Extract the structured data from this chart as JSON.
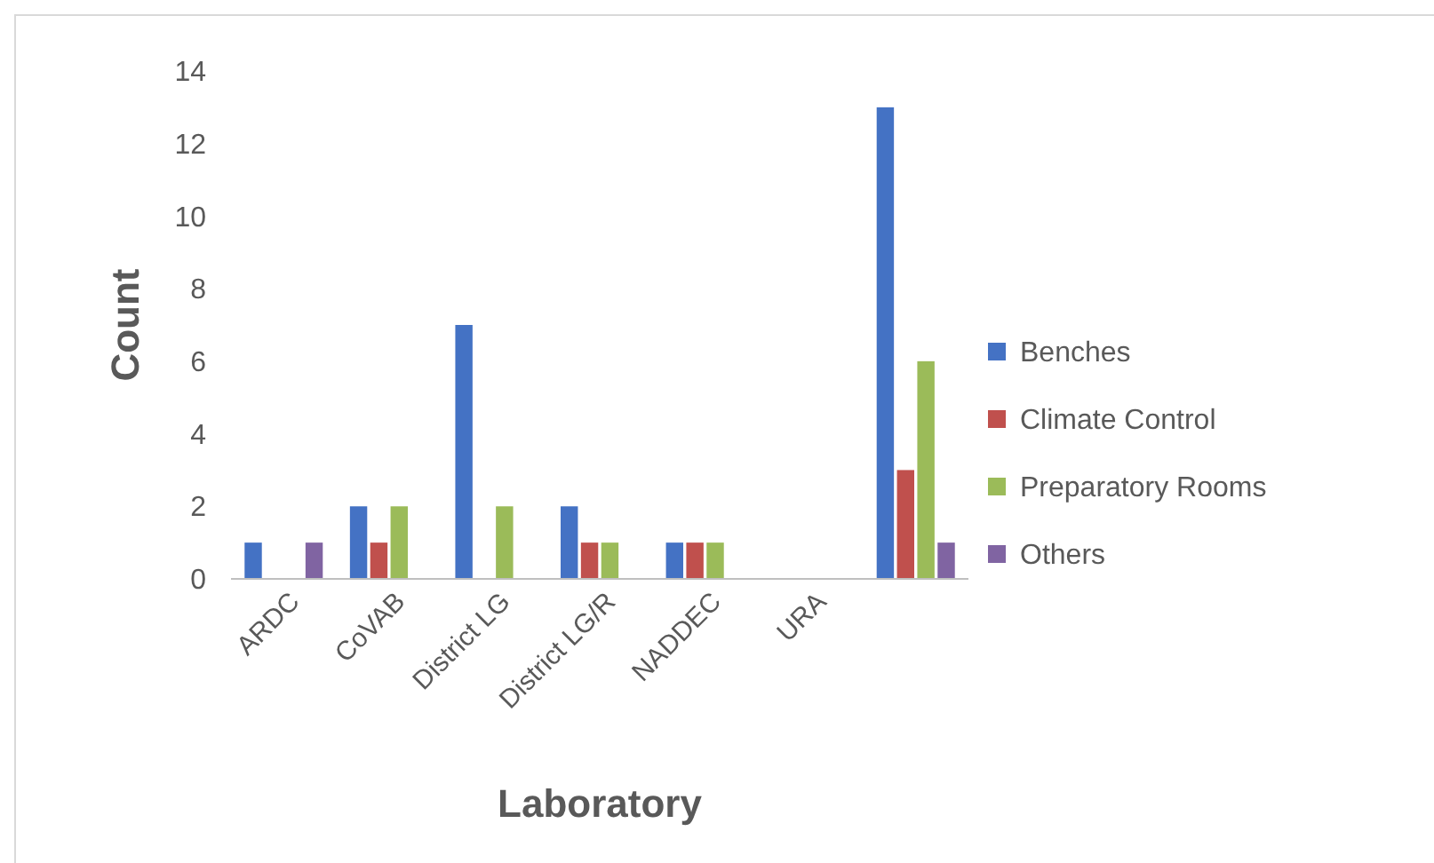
{
  "chart_data": {
    "type": "bar",
    "xlabel": "Laboratory",
    "ylabel": "Count",
    "categories": [
      "ARDC",
      "CoVAB",
      "District LG",
      "District LG/R",
      "NADDEC",
      "URA",
      null
    ],
    "series": [
      {
        "name": "Benches",
        "color": "#4472c4",
        "values": [
          1,
          2,
          7,
          2,
          1,
          0,
          13
        ]
      },
      {
        "name": "Climate Control",
        "color": "#c0504d",
        "values": [
          0,
          1,
          0,
          1,
          1,
          0,
          3
        ]
      },
      {
        "name": "Preparatory Rooms",
        "color": "#9bbb59",
        "values": [
          0,
          2,
          2,
          1,
          1,
          0,
          6
        ]
      },
      {
        "name": "Others",
        "color": "#8064a2",
        "values": [
          1,
          0,
          0,
          0,
          0,
          0,
          1
        ]
      }
    ],
    "ylim": [
      0,
      14
    ],
    "yticks": [
      0,
      2,
      4,
      6,
      8,
      10,
      12,
      14
    ],
    "grid": false,
    "legend": "right"
  }
}
